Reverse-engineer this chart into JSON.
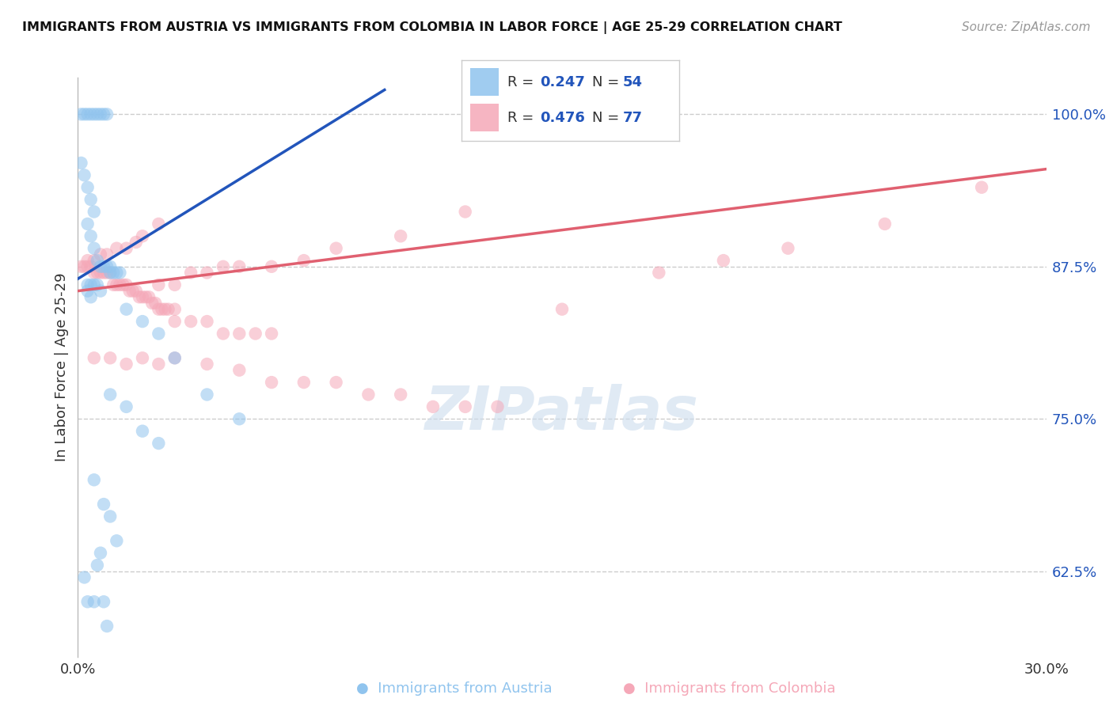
{
  "title": "IMMIGRANTS FROM AUSTRIA VS IMMIGRANTS FROM COLOMBIA IN LABOR FORCE | AGE 25-29 CORRELATION CHART",
  "source": "Source: ZipAtlas.com",
  "ylabel": "In Labor Force | Age 25-29",
  "legend_label_blue": "Immigrants from Austria",
  "legend_label_pink": "Immigrants from Colombia",
  "xlim": [
    0.0,
    0.3
  ],
  "ylim": [
    0.555,
    1.03
  ],
  "yticks": [
    0.625,
    0.75,
    0.875,
    1.0
  ],
  "ytick_labels": [
    "62.5%",
    "75.0%",
    "87.5%",
    "100.0%"
  ],
  "xticks": [
    0.0,
    0.05,
    0.1,
    0.15,
    0.2,
    0.25,
    0.3
  ],
  "xtick_labels": [
    "0.0%",
    "",
    "",
    "",
    "",
    "",
    "30.0%"
  ],
  "color_blue": "#90C4EE",
  "color_pink": "#F5A8B8",
  "color_blue_line": "#2255BB",
  "color_pink_line": "#E06070",
  "background_color": "#FFFFFF",
  "austria_x": [
    0.001,
    0.002,
    0.003,
    0.004,
    0.005,
    0.006,
    0.007,
    0.008,
    0.009,
    0.001,
    0.002,
    0.003,
    0.004,
    0.005,
    0.003,
    0.004,
    0.005,
    0.006,
    0.007,
    0.008,
    0.009,
    0.01,
    0.01,
    0.011,
    0.012,
    0.013,
    0.003,
    0.004,
    0.005,
    0.006,
    0.007,
    0.003,
    0.004,
    0.015,
    0.02,
    0.025,
    0.03,
    0.04,
    0.05,
    0.01,
    0.015,
    0.02,
    0.025,
    0.005,
    0.008,
    0.01,
    0.012,
    0.002,
    0.003,
    0.005,
    0.006,
    0.007,
    0.008,
    0.009
  ],
  "austria_y": [
    1.0,
    1.0,
    1.0,
    1.0,
    1.0,
    1.0,
    1.0,
    1.0,
    1.0,
    0.96,
    0.95,
    0.94,
    0.93,
    0.92,
    0.91,
    0.9,
    0.89,
    0.88,
    0.875,
    0.875,
    0.875,
    0.875,
    0.87,
    0.87,
    0.87,
    0.87,
    0.86,
    0.86,
    0.86,
    0.86,
    0.855,
    0.855,
    0.85,
    0.84,
    0.83,
    0.82,
    0.8,
    0.77,
    0.75,
    0.77,
    0.76,
    0.74,
    0.73,
    0.7,
    0.68,
    0.67,
    0.65,
    0.62,
    0.6,
    0.6,
    0.63,
    0.64,
    0.6,
    0.58
  ],
  "colombia_x": [
    0.001,
    0.002,
    0.003,
    0.004,
    0.005,
    0.006,
    0.007,
    0.008,
    0.009,
    0.01,
    0.011,
    0.012,
    0.013,
    0.014,
    0.015,
    0.016,
    0.017,
    0.018,
    0.019,
    0.02,
    0.021,
    0.022,
    0.023,
    0.024,
    0.025,
    0.026,
    0.027,
    0.028,
    0.03,
    0.003,
    0.005,
    0.007,
    0.009,
    0.012,
    0.015,
    0.018,
    0.02,
    0.025,
    0.03,
    0.035,
    0.04,
    0.045,
    0.05,
    0.055,
    0.06,
    0.025,
    0.03,
    0.035,
    0.04,
    0.045,
    0.05,
    0.06,
    0.07,
    0.08,
    0.1,
    0.12,
    0.15,
    0.18,
    0.2,
    0.22,
    0.25,
    0.28,
    0.005,
    0.01,
    0.015,
    0.02,
    0.025,
    0.03,
    0.04,
    0.05,
    0.06,
    0.07,
    0.08,
    0.09,
    0.1,
    0.11,
    0.12,
    0.13
  ],
  "colombia_y": [
    0.875,
    0.875,
    0.875,
    0.875,
    0.87,
    0.87,
    0.87,
    0.87,
    0.87,
    0.87,
    0.86,
    0.86,
    0.86,
    0.86,
    0.86,
    0.855,
    0.855,
    0.855,
    0.85,
    0.85,
    0.85,
    0.85,
    0.845,
    0.845,
    0.84,
    0.84,
    0.84,
    0.84,
    0.84,
    0.88,
    0.88,
    0.885,
    0.885,
    0.89,
    0.89,
    0.895,
    0.9,
    0.91,
    0.83,
    0.83,
    0.83,
    0.82,
    0.82,
    0.82,
    0.82,
    0.86,
    0.86,
    0.87,
    0.87,
    0.875,
    0.875,
    0.875,
    0.88,
    0.89,
    0.9,
    0.92,
    0.84,
    0.87,
    0.88,
    0.89,
    0.91,
    0.94,
    0.8,
    0.8,
    0.795,
    0.8,
    0.795,
    0.8,
    0.795,
    0.79,
    0.78,
    0.78,
    0.78,
    0.77,
    0.77,
    0.76,
    0.76,
    0.76
  ]
}
